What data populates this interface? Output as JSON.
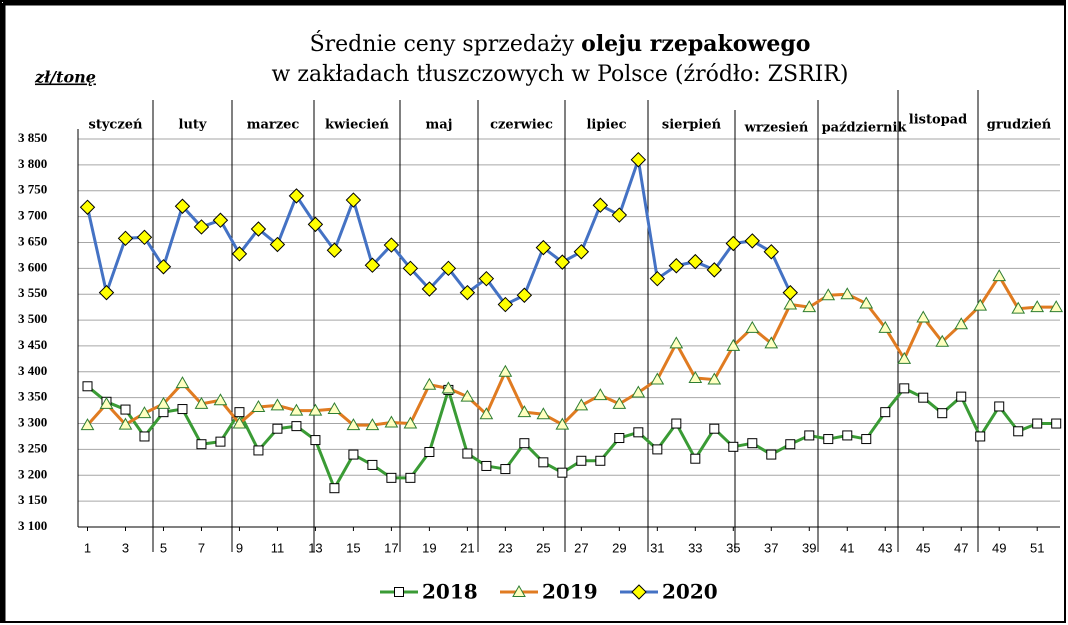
{
  "chart_data": {
    "type": "line",
    "title": [
      "Średnie ceny sprzedaży ",
      "oleju rzepakowego",
      "w zakładach tłuszczowych w Polsce  (źródło: ZSRIR)"
    ],
    "y_label": "zł/tonę",
    "annotations": [
      "styczeń",
      "luty",
      "marzec",
      "kwiecień",
      "maj",
      "czerwiec",
      "lipiec",
      "sierpień",
      "wrzesień",
      "październik",
      "listopad",
      "grudzień"
    ],
    "x": [
      1,
      2,
      3,
      4,
      5,
      6,
      7,
      8,
      9,
      10,
      11,
      12,
      13,
      14,
      15,
      16,
      17,
      18,
      19,
      20,
      21,
      22,
      23,
      24,
      25,
      26,
      27,
      28,
      29,
      30,
      31,
      32,
      33,
      34,
      35,
      36,
      37,
      38,
      39,
      40,
      41,
      42,
      43,
      44,
      45,
      46,
      47,
      48,
      49,
      50,
      51,
      52
    ],
    "xlim": [
      0.5,
      52.2
    ],
    "xticks": [
      1,
      3,
      5,
      7,
      9,
      11,
      13,
      15,
      17,
      19,
      21,
      23,
      25,
      27,
      29,
      31,
      33,
      35,
      37,
      39,
      41,
      43,
      45,
      47,
      49,
      51
    ],
    "ylim": [
      3100,
      3850
    ],
    "yticks": [
      {
        "value": 3100,
        "label": "3 100"
      },
      {
        "value": 3150,
        "label": "3 150"
      },
      {
        "value": 3200,
        "label": "3 200"
      },
      {
        "value": 3250,
        "label": "3 250"
      },
      {
        "value": 3300,
        "label": "3 300"
      },
      {
        "value": 3350,
        "label": "3 350"
      },
      {
        "value": 3400,
        "label": "3 400"
      },
      {
        "value": 3450,
        "label": "3 450"
      },
      {
        "value": 3500,
        "label": "3 500"
      },
      {
        "value": 3550,
        "label": "3 550"
      },
      {
        "value": 3600,
        "label": "3 600"
      },
      {
        "value": 3650,
        "label": "3 650"
      },
      {
        "value": 3700,
        "label": "3 700"
      },
      {
        "value": 3750,
        "label": "3 750"
      },
      {
        "value": 3800,
        "label": "3 800"
      },
      {
        "value": 3850,
        "label": "3 850"
      }
    ],
    "grid": true,
    "legend": "bottom",
    "series": [
      {
        "name": "2018",
        "color": "#3a9b35",
        "values": [
          3372,
          3342,
          3327,
          3275,
          3322,
          3328,
          3260,
          3265,
          3322,
          3248,
          3290,
          3295,
          3268,
          3175,
          3240,
          3220,
          3195,
          3195,
          3245,
          3365,
          3242,
          3218,
          3212,
          3262,
          3225,
          3205,
          3228,
          3228,
          3272,
          3283,
          3250,
          3300,
          3232,
          3290,
          3255,
          3262,
          3240,
          3260,
          3277,
          3270,
          3277,
          3270,
          3322,
          3368,
          3350,
          3320,
          3352,
          3275,
          3333,
          3285,
          3300,
          3300
        ]
      },
      {
        "name": "2019",
        "color": "#e07b21",
        "values": [
          3297,
          3338,
          3298,
          3320,
          3338,
          3378,
          3338,
          3345,
          3300,
          3332,
          3335,
          3325,
          3325,
          3328,
          3297,
          3297,
          3302,
          3300,
          3375,
          3368,
          3352,
          3318,
          3400,
          3322,
          3318,
          3298,
          3335,
          3355,
          3338,
          3360,
          3385,
          3455,
          3388,
          3385,
          3450,
          3485,
          3455,
          3530,
          3525,
          3548,
          3550,
          3532,
          3485,
          3425,
          3505,
          3458,
          3492,
          3528,
          3585,
          3522,
          3525,
          3525
        ]
      },
      {
        "name": "2020",
        "color": "#4472c4",
        "values": [
          3718,
          3553,
          3658,
          3660,
          3603,
          3720,
          3680,
          3693,
          3628,
          3676,
          3646,
          3740,
          3685,
          3635,
          3732,
          3606,
          3645,
          3600,
          3560,
          3600,
          3553,
          3580,
          3530,
          3548,
          3640,
          3612,
          3632,
          3722,
          3703,
          3810,
          3580,
          3605,
          3613,
          3597,
          3648,
          3653,
          3632,
          3553,
          null,
          null,
          null,
          null,
          null,
          null,
          null,
          null,
          null,
          null,
          null,
          null,
          null,
          null
        ]
      }
    ]
  }
}
